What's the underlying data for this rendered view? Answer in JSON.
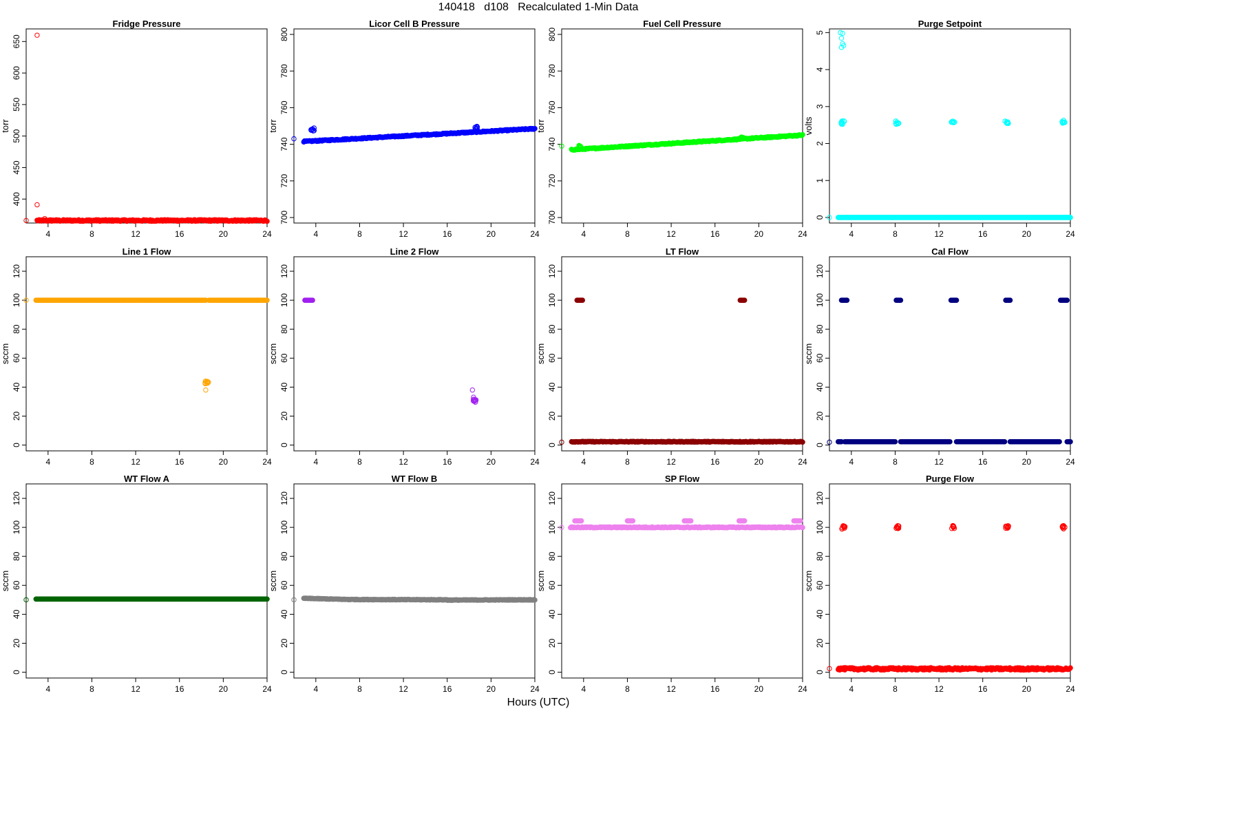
{
  "title": "140418   d108   Recalculated 1-Min Data",
  "x_axis_label": "Hours (UTC)",
  "chart_data": [
    {
      "type": "scatter",
      "title": "Fridge Pressure",
      "ylabel": "torr",
      "color": "#ff0000",
      "xlim": [
        2,
        24
      ],
      "ylim": [
        362,
        670
      ],
      "xticks": [
        4,
        8,
        12,
        16,
        20,
        24
      ],
      "yticks": [
        400,
        450,
        500,
        550,
        600,
        650
      ],
      "outliers": [
        [
          2.0,
          366
        ],
        [
          3.0,
          660
        ],
        [
          3.0,
          391
        ],
        [
          3.7,
          369
        ]
      ],
      "segments": [
        {
          "x": [
            3.0,
            24.0
          ],
          "y": [
            366,
            366
          ],
          "noise": 1.2
        }
      ],
      "clusters": []
    },
    {
      "type": "scatter",
      "title": "Licor Cell B Pressure",
      "ylabel": "torr",
      "color": "#0000ff",
      "xlim": [
        2,
        24
      ],
      "ylim": [
        697,
        803
      ],
      "xticks": [
        4,
        8,
        12,
        16,
        20,
        24
      ],
      "yticks": [
        700,
        720,
        740,
        760,
        780,
        800
      ],
      "outliers": [
        [
          2.0,
          743
        ]
      ],
      "segments": [
        {
          "x": [
            2.9,
            24.0
          ],
          "y": [
            741.5,
            748.5
          ],
          "noise": 0.3
        }
      ],
      "clusters": [
        {
          "x": 3.7,
          "y": 748
        },
        {
          "x": 18.6,
          "y": 749
        }
      ]
    },
    {
      "type": "scatter",
      "title": "Fuel Cell Pressure",
      "ylabel": "torr",
      "color": "#00ff00",
      "xlim": [
        2,
        24
      ],
      "ylim": [
        697,
        803
      ],
      "xticks": [
        4,
        8,
        12,
        16,
        20,
        24
      ],
      "yticks": [
        700,
        720,
        740,
        760,
        780,
        800
      ],
      "outliers": [
        [
          2.0,
          739
        ]
      ],
      "segments": [
        {
          "x": [
            2.9,
            24.0
          ],
          "y": [
            737,
            745
          ],
          "noise": 0.3
        }
      ],
      "clusters": [
        {
          "x": 3.6,
          "y": 738.5
        },
        {
          "x": 18.5,
          "y": 743.5
        }
      ]
    },
    {
      "type": "scatter",
      "title": "Purge Setpoint",
      "ylabel": "volts",
      "color": "#00ffff",
      "xlim": [
        2,
        24
      ],
      "ylim": [
        -0.15,
        5.1
      ],
      "xticks": [
        4,
        8,
        12,
        16,
        20,
        24
      ],
      "yticks": [
        0,
        1,
        2,
        3,
        4,
        5
      ],
      "outliers": [
        [
          2.0,
          0
        ],
        [
          3.0,
          5.0
        ],
        [
          3.2,
          4.98
        ],
        [
          3.1,
          4.85
        ],
        [
          3.2,
          4.7
        ],
        [
          3.1,
          4.6
        ],
        [
          3.3,
          4.65
        ]
      ],
      "segments": [
        {
          "x": [
            2.8,
            24.0
          ],
          "y": [
            0,
            0
          ],
          "noise": 0
        }
      ],
      "clusters": [
        {
          "x": 3.2,
          "y": 2.57
        },
        {
          "x": 8.2,
          "y": 2.57
        },
        {
          "x": 13.3,
          "y": 2.6
        },
        {
          "x": 18.2,
          "y": 2.57
        },
        {
          "x": 23.4,
          "y": 2.6
        }
      ]
    },
    {
      "type": "scatter",
      "title": "Line 1 Flow",
      "ylabel": "sccm",
      "color": "#ffa500",
      "xlim": [
        2,
        24
      ],
      "ylim": [
        -4,
        130
      ],
      "xticks": [
        4,
        8,
        12,
        16,
        20,
        24
      ],
      "yticks": [
        0,
        20,
        40,
        60,
        80,
        100,
        120
      ],
      "outliers": [
        [
          2.0,
          100
        ],
        [
          18.4,
          38
        ]
      ],
      "segments": [
        {
          "x": [
            2.9,
            18.4
          ],
          "y": [
            100,
            100
          ],
          "noise": 0
        },
        {
          "x": [
            18.7,
            24.0
          ],
          "y": [
            100,
            100
          ],
          "noise": 0
        }
      ],
      "clusters": [
        {
          "x": 18.5,
          "y": 43.5
        }
      ]
    },
    {
      "type": "scatter",
      "title": "Line 2 Flow",
      "ylabel": "sccm",
      "color": "#a020f0",
      "xlim": [
        2,
        24
      ],
      "ylim": [
        -4,
        130
      ],
      "xticks": [
        4,
        8,
        12,
        16,
        20,
        24
      ],
      "yticks": [
        0,
        20,
        40,
        60,
        80,
        100,
        120
      ],
      "outliers": [
        [
          18.3,
          38
        ],
        [
          18.4,
          33
        ]
      ],
      "segments": [
        {
          "x": [
            3.0,
            3.7
          ],
          "y": [
            100,
            100
          ],
          "noise": 0
        }
      ],
      "clusters": [
        {
          "x": 18.5,
          "y": 30.5
        }
      ]
    },
    {
      "type": "scatter",
      "title": "LT Flow",
      "ylabel": "sccm",
      "color": "#8b0000",
      "xlim": [
        2,
        24
      ],
      "ylim": [
        -4,
        130
      ],
      "xticks": [
        4,
        8,
        12,
        16,
        20,
        24
      ],
      "yticks": [
        0,
        20,
        40,
        60,
        80,
        100,
        120
      ],
      "outliers": [
        [
          2.0,
          2
        ]
      ],
      "segments": [
        {
          "x": [
            2.9,
            24.0
          ],
          "y": [
            2.3,
            2.3
          ],
          "noise": 0.25
        },
        {
          "x": [
            3.4,
            3.9
          ],
          "y": [
            100,
            100
          ],
          "noise": 0
        },
        {
          "x": [
            18.3,
            18.7
          ],
          "y": [
            100,
            100
          ],
          "noise": 0
        }
      ],
      "clusters": []
    },
    {
      "type": "scatter",
      "title": "Cal Flow",
      "ylabel": "sccm",
      "color": "#000080",
      "xlim": [
        2,
        24
      ],
      "ylim": [
        -4,
        130
      ],
      "xticks": [
        4,
        8,
        12,
        16,
        20,
        24
      ],
      "yticks": [
        0,
        20,
        40,
        60,
        80,
        100,
        120
      ],
      "outliers": [
        [
          2.0,
          2
        ]
      ],
      "segments": [
        {
          "x": [
            2.8,
            3.1
          ],
          "y": [
            2.3,
            2.3
          ],
          "noise": 0
        },
        {
          "x": [
            3.4,
            8.0
          ],
          "y": [
            2.3,
            2.3
          ],
          "noise": 0
        },
        {
          "x": [
            8.5,
            13.0
          ],
          "y": [
            2.3,
            2.3
          ],
          "noise": 0
        },
        {
          "x": [
            13.6,
            18.0
          ],
          "y": [
            2.3,
            2.3
          ],
          "noise": 0
        },
        {
          "x": [
            18.5,
            23.0
          ],
          "y": [
            2.3,
            2.3
          ],
          "noise": 0
        },
        {
          "x": [
            23.7,
            24.0
          ],
          "y": [
            2.3,
            2.3
          ],
          "noise": 0
        },
        {
          "x": [
            3.1,
            3.6
          ],
          "y": [
            100,
            100
          ],
          "noise": 0
        },
        {
          "x": [
            8.1,
            8.5
          ],
          "y": [
            100,
            100
          ],
          "noise": 0
        },
        {
          "x": [
            13.1,
            13.6
          ],
          "y": [
            100,
            100
          ],
          "noise": 0
        },
        {
          "x": [
            18.1,
            18.5
          ],
          "y": [
            100,
            100
          ],
          "noise": 0
        },
        {
          "x": [
            23.1,
            23.7
          ],
          "y": [
            100,
            100
          ],
          "noise": 0
        }
      ],
      "clusters": []
    },
    {
      "type": "scatter",
      "title": "WT Flow A",
      "ylabel": "sccm",
      "color": "#006400",
      "xlim": [
        2,
        24
      ],
      "ylim": [
        -4,
        130
      ],
      "xticks": [
        4,
        8,
        12,
        16,
        20,
        24
      ],
      "yticks": [
        0,
        20,
        40,
        60,
        80,
        100,
        120
      ],
      "outliers": [
        [
          2.0,
          50
        ]
      ],
      "segments": [
        {
          "x": [
            2.9,
            24.0
          ],
          "y": [
            50.5,
            50.5
          ],
          "noise": 0
        }
      ],
      "clusters": []
    },
    {
      "type": "scatter",
      "title": "WT Flow B",
      "ylabel": "sccm",
      "color": "#808080",
      "xlim": [
        2,
        24
      ],
      "ylim": [
        -4,
        130
      ],
      "xticks": [
        4,
        8,
        12,
        16,
        20,
        24
      ],
      "yticks": [
        0,
        20,
        40,
        60,
        80,
        100,
        120
      ],
      "outliers": [
        [
          2.0,
          50
        ]
      ],
      "segments": [
        {
          "x": [
            2.9,
            7.0
          ],
          "y": [
            51,
            50.2
          ],
          "noise": 0.2
        },
        {
          "x": [
            7.0,
            16.0
          ],
          "y": [
            50.2,
            50
          ],
          "noise": 0.2
        },
        {
          "x": [
            16.0,
            24.0
          ],
          "y": [
            49.8,
            50
          ],
          "noise": 0.2
        }
      ],
      "clusters": []
    },
    {
      "type": "scatter",
      "title": "SP Flow",
      "ylabel": "sccm",
      "color": "#ee82ee",
      "xlim": [
        2,
        24
      ],
      "ylim": [
        -4,
        130
      ],
      "xticks": [
        4,
        8,
        12,
        16,
        20,
        24
      ],
      "yticks": [
        0,
        20,
        40,
        60,
        80,
        100,
        120
      ],
      "outliers": [
        [
          2.0,
          100
        ]
      ],
      "segments": [
        {
          "x": [
            2.8,
            24.0
          ],
          "y": [
            100,
            100
          ],
          "noise": 0.3
        },
        {
          "x": [
            3.2,
            3.8
          ],
          "y": [
            104.5,
            104.5
          ],
          "noise": 0
        },
        {
          "x": [
            8.0,
            8.5
          ],
          "y": [
            104.5,
            104.5
          ],
          "noise": 0
        },
        {
          "x": [
            13.2,
            13.8
          ],
          "y": [
            104.5,
            104.5
          ],
          "noise": 0
        },
        {
          "x": [
            18.2,
            18.7
          ],
          "y": [
            104.5,
            104.5
          ],
          "noise": 0
        },
        {
          "x": [
            23.2,
            23.8
          ],
          "y": [
            104.5,
            104.5
          ],
          "noise": 0
        }
      ],
      "clusters": []
    },
    {
      "type": "scatter",
      "title": "Purge Flow",
      "ylabel": "sccm",
      "color": "#ff0000",
      "xlim": [
        2,
        24
      ],
      "ylim": [
        -4,
        130
      ],
      "xticks": [
        4,
        8,
        12,
        16,
        20,
        24
      ],
      "yticks": [
        0,
        20,
        40,
        60,
        80,
        100,
        120
      ],
      "outliers": [
        [
          2.0,
          2.5
        ]
      ],
      "segments": [
        {
          "x": [
            2.8,
            24.0
          ],
          "y": [
            2.3,
            2.3
          ],
          "noise": 0.8
        }
      ],
      "clusters": [
        {
          "x": 3.3,
          "y": 100
        },
        {
          "x": 8.2,
          "y": 100
        },
        {
          "x": 13.3,
          "y": 100
        },
        {
          "x": 18.2,
          "y": 100
        },
        {
          "x": 23.4,
          "y": 100
        }
      ]
    }
  ]
}
